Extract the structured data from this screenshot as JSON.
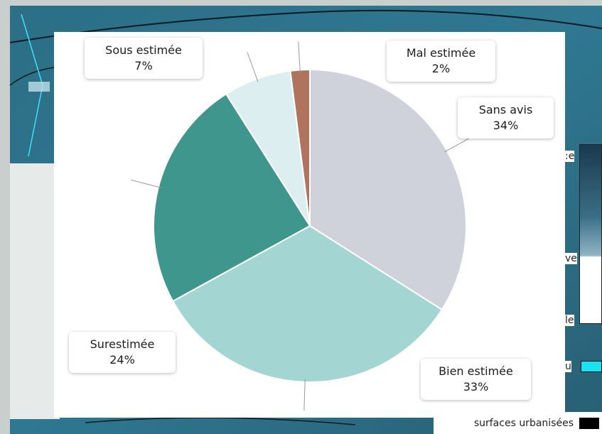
{
  "chart_data": {
    "type": "pie",
    "slices": [
      {
        "label": "Sans avis",
        "value": 34,
        "pct_label": "34%",
        "color": "#cfd1db"
      },
      {
        "label": "Bien estimée",
        "value": 33,
        "pct_label": "33%",
        "color": "#a3d5d3"
      },
      {
        "label": "Surestimée",
        "value": 24,
        "pct_label": "24%",
        "color": "#3f968c"
      },
      {
        "label": "Sous estimée",
        "value": 7,
        "pct_label": "7%",
        "color": "#ddeef0"
      },
      {
        "label": "Mal estimée",
        "value": 2,
        "pct_label": "2%",
        "color": "#b0745e"
      }
    ]
  },
  "background_legend": {
    "fragments": [
      ":e",
      "ve",
      "le",
      "u"
    ],
    "urban_label": "surfaces urbanisées",
    "water_color": "#18e3f0",
    "urban_color": "#000000"
  }
}
